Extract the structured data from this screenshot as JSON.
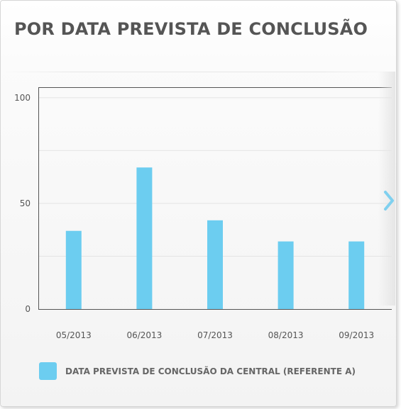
{
  "panel": {
    "title": "POR DATA PREVISTA DE CONCLUSÃO",
    "next_icon": "chevron-right-icon"
  },
  "chart_data": {
    "type": "bar",
    "title": "POR DATA PREVISTA DE CONCLUSÃO",
    "categories": [
      "05/2013",
      "06/2013",
      "07/2013",
      "08/2013",
      "09/2013"
    ],
    "series": [
      {
        "name": "DATA PREVISTA DE CONCLUSÃO DA CENTRAL (REFERENTE A)",
        "values": [
          37,
          67,
          42,
          32,
          32
        ],
        "color": "#6ccdf0"
      }
    ],
    "yticks": [
      "0",
      "50",
      "100"
    ],
    "ylim": [
      0,
      105
    ],
    "grid": true,
    "legend_position": "bottom-left",
    "xlabel": "",
    "ylabel": ""
  }
}
